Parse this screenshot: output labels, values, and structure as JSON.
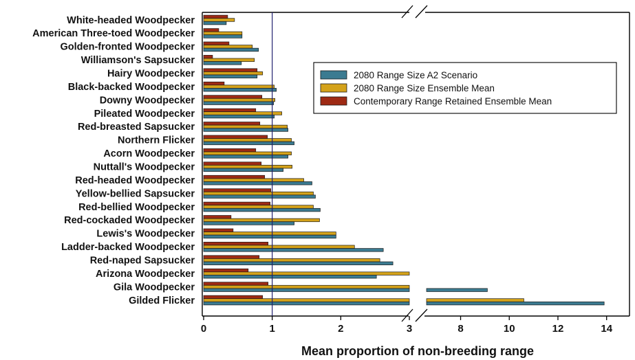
{
  "chart_data": {
    "type": "bar",
    "orientation": "horizontal",
    "xlabel": "Mean proportion of non-breeding range",
    "ylabel": "",
    "title": "",
    "x_axis": {
      "broken": true,
      "segments": [
        {
          "range": [
            0,
            3
          ],
          "ticks": [
            "0",
            "1",
            "2",
            "3"
          ]
        },
        {
          "range": [
            6.6,
            14.8
          ],
          "ticks": [
            "8",
            "10",
            "12",
            "14"
          ]
        }
      ]
    },
    "reference_line": 1,
    "legend_position": "right",
    "categories": [
      "White-headed Woodpecker",
      "American Three-toed Woodpecker",
      "Golden-fronted Woodpecker",
      "Williamson's Sapsucker",
      "Hairy Woodpecker",
      "Black-backed Woodpecker",
      "Downy Woodpecker",
      "Pileated Woodpecker",
      "Red-breasted Sapsucker",
      "Northern Flicker",
      "Acorn Woodpecker",
      "Nuttall's Woodpecker",
      "Red-headed Woodpecker",
      "Yellow-bellied Sapsucker",
      "Red-bellied Woodpecker",
      "Red-cockaded Woodpecker",
      "Lewis's Woodpecker",
      "Ladder-backed Woodpecker",
      "Red-naped Sapsucker",
      "Arizona Woodpecker",
      "Gila Woodpecker",
      "Gilded Flicker"
    ],
    "series": [
      {
        "name": "Contemporary Range Retained Ensemble Mean",
        "color": "#9e2a14",
        "values": [
          0.35,
          0.22,
          0.37,
          0.13,
          0.78,
          0.3,
          0.85,
          0.76,
          0.82,
          0.93,
          0.76,
          0.84,
          0.89,
          0.98,
          0.97,
          0.4,
          0.43,
          0.94,
          0.81,
          0.65,
          0.94,
          0.86
        ]
      },
      {
        "name": "2080 Range Size Ensemble Mean",
        "color": "#d4a21a",
        "values": [
          0.45,
          0.56,
          0.71,
          0.74,
          0.86,
          1.03,
          1.04,
          1.14,
          1.22,
          1.28,
          1.28,
          1.29,
          1.46,
          1.6,
          1.6,
          1.69,
          1.93,
          2.2,
          2.57,
          3.0,
          3.0,
          10.6
        ]
      },
      {
        "name": "2080 Range Size A2 Scenario",
        "color": "#3b7b91",
        "values": [
          0.33,
          0.56,
          0.8,
          0.55,
          0.78,
          1.06,
          1.02,
          1.03,
          1.23,
          1.32,
          1.23,
          1.16,
          1.58,
          1.63,
          1.7,
          1.32,
          1.93,
          2.62,
          2.76,
          2.52,
          9.1,
          13.9
        ]
      }
    ],
    "legend_order": [
      "2080 Range Size A2 Scenario",
      "2080 Range Size Ensemble Mean",
      "Contemporary Range Retained Ensemble Mean"
    ]
  }
}
